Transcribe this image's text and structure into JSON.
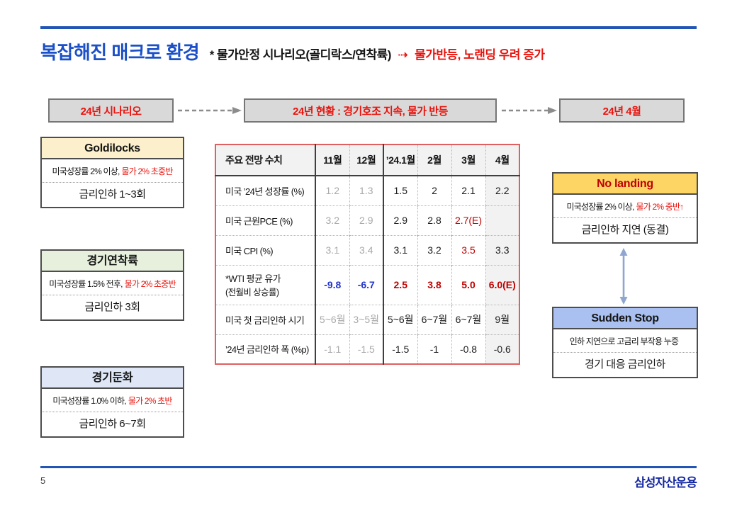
{
  "title": {
    "main": "복잡해진 매크로 환경",
    "sub": "* 물가안정 시나리오(골디락스/연착륙)",
    "arrow": "⇢",
    "sub_red": "물가반등, 노랜딩 우려 증가"
  },
  "flow": {
    "box1": "24년 시나리오",
    "box2": "24년 현황 : 경기호조 지속, 물가 반등",
    "box3": "24년 4월"
  },
  "left_cards": [
    {
      "header": "Goldilocks",
      "header_bg": "#fbf0cb",
      "header_fg": "#141414",
      "cond_black": "미국성장률 2% 이상,",
      "cond_red": "물가 2% 초중반",
      "action": "금리인하 1~3회"
    },
    {
      "header": "경기연착륙",
      "header_bg": "#e7f0dd",
      "header_fg": "#141414",
      "cond_black": "미국성장률 1.5% 전후,",
      "cond_red": "물가 2% 초중반",
      "action": "금리인하 3회"
    },
    {
      "header": "경기둔화",
      "header_bg": "#dfe6f5",
      "header_fg": "#141414",
      "cond_black": "미국성장률 1.0% 이하,",
      "cond_red": "물가 2% 초반",
      "action": "금리인하 6~7회"
    }
  ],
  "right_cards": [
    {
      "header": "No landing",
      "header_bg": "#fcd564",
      "header_fg": "#c00000",
      "cond_black": "미국성장률 2% 이상,",
      "cond_red": "물가 2% 중반↑",
      "action": "금리인하 지연 (동결)"
    },
    {
      "header": "Sudden Stop",
      "header_bg": "#a9c0f0",
      "header_fg": "#141414",
      "cond_black": "인하 지연으로 고금리 부작용 누증",
      "cond_red": "",
      "action": "경기 대응 금리인하"
    }
  ],
  "table": {
    "header": [
      "주요 전망 수치",
      "11월",
      "12월",
      "’24.1월",
      "2월",
      "3월",
      "4월"
    ],
    "rows": [
      {
        "label": "미국 ’24년 성장률 (%)",
        "label2": "",
        "tall": false,
        "values": [
          "1.2",
          "1.3",
          "1.5",
          "2",
          "2.1",
          "2.2"
        ],
        "styles": [
          "gray",
          "gray",
          "black",
          "black",
          "black",
          "black"
        ]
      },
      {
        "label": "미국 근원PCE (%)",
        "label2": "",
        "tall": false,
        "values": [
          "3.2",
          "2.9",
          "2.9",
          "2.8",
          "2.7(E)",
          ""
        ],
        "styles": [
          "gray",
          "gray",
          "black",
          "black",
          "red",
          "black"
        ]
      },
      {
        "label": "미국 CPI (%)",
        "label2": "",
        "tall": false,
        "values": [
          "3.1",
          "3.4",
          "3.1",
          "3.2",
          "3.5",
          "3.3"
        ],
        "styles": [
          "gray",
          "gray",
          "black",
          "black",
          "red",
          "black"
        ]
      },
      {
        "label": "*WTI 평균 유가",
        "label2": "(전월비 상승률)",
        "tall": true,
        "values": [
          "-9.8",
          "-6.7",
          "2.5",
          "3.8",
          "5.0",
          "6.0(E)"
        ],
        "styles": [
          "blueb",
          "blueb",
          "redb",
          "redb",
          "redb",
          "redb"
        ]
      },
      {
        "label": "미국 첫 금리인하 시기",
        "label2": "",
        "tall": false,
        "values": [
          "5~6월",
          "3~5월",
          "5~6월",
          "6~7월",
          "6~7월",
          "9월"
        ],
        "styles": [
          "gray",
          "gray",
          "black",
          "black",
          "black",
          "black"
        ]
      },
      {
        "label": "’24년 금리인하 폭 (%p)",
        "label2": "",
        "tall": false,
        "values": [
          "-1.1",
          "-1.5",
          "-1.5",
          "-1",
          "-0.8",
          "-0.6"
        ],
        "styles": [
          "gray",
          "gray",
          "black",
          "black",
          "black",
          "black"
        ]
      }
    ]
  },
  "footer": {
    "page": "5",
    "logo": "삼성자산운용"
  },
  "colors": {
    "accent_blue": "#2355b4",
    "title_blue": "#1b50c8",
    "red_accent": "#e8140e",
    "table_red": "#c00000",
    "table_blue": "#2233cc",
    "table_border": "#e05f5f",
    "box_gray": "#d9d9d9",
    "shade_gray": "#f2f2f2",
    "logo_blue": "#1428a0"
  }
}
